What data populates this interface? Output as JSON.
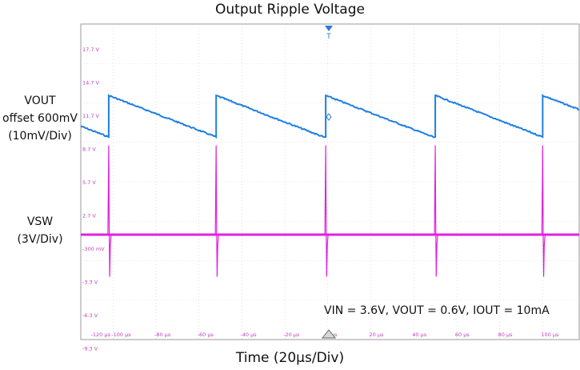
{
  "title": "Output Ripple Voltage",
  "channel_labels": {
    "vout_line1": "VOUT",
    "vout_line2": "offset 600mV",
    "vout_line3": "(10mV/Div)",
    "vsw_line1": "VSW",
    "vsw_line2": "(3V/Div)"
  },
  "xlabel": "Time (20µs/Div)",
  "annotation": "VIN = 3.6V, VOUT = 0.6V, IOUT = 10mA",
  "trigger_marker": "T",
  "colors": {
    "vout_trace": "#1f7fe0",
    "vsw_trace": "#e020e0",
    "tick_labels": "#c040c0",
    "grid": "#cccccc"
  },
  "chart_data": {
    "type": "line",
    "x_tick_labels": [
      "-120 µs",
      "-100 µs",
      "-80 µs",
      "-60 µs",
      "-40 µs",
      "-20 µs",
      "0 µs",
      "20 µs",
      "40 µs",
      "60 µs",
      "80 µs",
      "100 µs"
    ],
    "y_tick_labels": [
      "17.7 V",
      "14.7 V",
      "11.7 V",
      "8.7 V",
      "5.7 V",
      "2.7 V",
      "-300 mV",
      "-3.3 V",
      "-6.3 V",
      "-9.3 V"
    ],
    "xlim_us": [
      -115,
      117
    ],
    "series": [
      {
        "name": "VOUT",
        "unit": "mV",
        "ripple_sawtooth": {
          "jump_times_us": [
            -102,
            -52,
            -1,
            50,
            100
          ],
          "peak_mV": 7.5,
          "trough_mV": -6.5
        }
      },
      {
        "name": "VSW",
        "unit": "V",
        "baseline_V": -0.3,
        "spike_times_us": [
          -102,
          -52,
          -1,
          50,
          100
        ],
        "spike_peak_V": 6.5,
        "spike_min_V": -3.5
      }
    ]
  }
}
